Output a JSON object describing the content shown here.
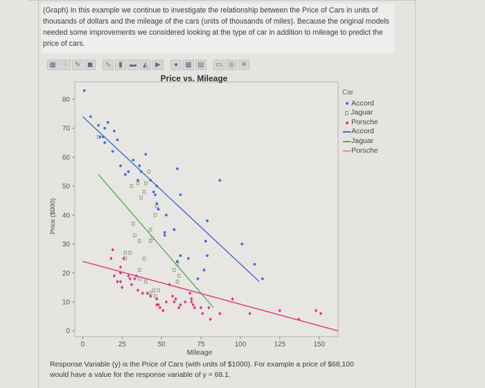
{
  "intro": {
    "text": "(Graph) In this example we continue to investigate the relationship between the Price of Cars in units of thousands of dollars and the mileage of the cars (units of thousands of miles). Because the original models needed some improvements we considered looking at the type of car in addition to mileage to predict the price of cars."
  },
  "toolbar": {
    "icons": [
      "grid-icon",
      "scatter-icon",
      "edit-icon",
      "fill-icon",
      "line-icon",
      "histogram-icon",
      "bar-icon",
      "area-icon",
      "play-icon",
      "points-icon",
      "heatmap-icon",
      "map-icon",
      "text-icon",
      "contour-icon",
      "spin-icon"
    ]
  },
  "chart_data": {
    "type": "scatter",
    "title": "Price vs. Mileage",
    "xlabel": "Mileage",
    "ylabel": "Price ($000)",
    "xlim": [
      -5,
      162
    ],
    "ylim": [
      -2,
      86
    ],
    "xticks": [
      0,
      25,
      50,
      75,
      100,
      125,
      150
    ],
    "yticks": [
      0,
      10,
      20,
      30,
      40,
      50,
      60,
      70,
      80
    ],
    "grid": false,
    "legend_title": "Car",
    "legend_position": "right",
    "series": [
      {
        "name": "Accord",
        "marker": "dot",
        "color": "#3b6fd4",
        "points": [
          [
            1,
            83
          ],
          [
            5,
            74
          ],
          [
            10,
            71
          ],
          [
            14,
            70
          ],
          [
            16,
            72
          ],
          [
            19,
            62
          ],
          [
            20,
            69
          ],
          [
            11,
            67
          ],
          [
            13,
            67
          ],
          [
            14,
            65
          ],
          [
            22,
            66
          ],
          [
            24,
            57
          ],
          [
            27,
            54
          ],
          [
            29,
            55
          ],
          [
            32,
            59
          ],
          [
            35,
            52
          ],
          [
            36,
            57
          ],
          [
            37,
            55
          ],
          [
            40,
            61
          ],
          [
            43,
            52
          ],
          [
            45,
            48
          ],
          [
            46,
            47
          ],
          [
            47,
            44
          ],
          [
            47,
            50
          ],
          [
            48,
            42
          ],
          [
            53,
            40
          ],
          [
            60,
            56
          ],
          [
            62,
            47
          ],
          [
            52,
            33
          ],
          [
            52,
            34
          ],
          [
            58,
            35
          ],
          [
            60,
            24
          ],
          [
            62,
            26
          ],
          [
            67,
            25
          ],
          [
            73,
            18
          ],
          [
            77,
            21
          ],
          [
            78,
            31
          ],
          [
            79,
            26
          ],
          [
            79,
            38
          ],
          [
            87,
            52
          ],
          [
            101,
            30
          ],
          [
            109,
            23
          ],
          [
            114,
            18
          ]
        ]
      },
      {
        "name": "Jaguar",
        "marker": "square",
        "color": "#8a9a6e",
        "points": [
          [
            10,
            67
          ],
          [
            31,
            50
          ],
          [
            35,
            51
          ],
          [
            37,
            46
          ],
          [
            39,
            48
          ],
          [
            40,
            51
          ],
          [
            42,
            55
          ],
          [
            47,
            43
          ],
          [
            46,
            40
          ],
          [
            43,
            35
          ],
          [
            43,
            31
          ],
          [
            44,
            32
          ],
          [
            36,
            31
          ],
          [
            33,
            33
          ],
          [
            32,
            37
          ],
          [
            30,
            27
          ],
          [
            27,
            27
          ],
          [
            27,
            25
          ],
          [
            39,
            25
          ],
          [
            36,
            21
          ],
          [
            36,
            18
          ],
          [
            40,
            17
          ],
          [
            43,
            13
          ],
          [
            45,
            14
          ],
          [
            46,
            12
          ],
          [
            48,
            14
          ],
          [
            58,
            21
          ],
          [
            60,
            17
          ],
          [
            60,
            23
          ],
          [
            61,
            19
          ]
        ]
      },
      {
        "name": "Porsche",
        "marker": "diamond",
        "color": "#e0357a",
        "points": [
          [
            19,
            28
          ],
          [
            18,
            25
          ],
          [
            26,
            25
          ],
          [
            24,
            22
          ],
          [
            20,
            19
          ],
          [
            22,
            17
          ],
          [
            24,
            17
          ],
          [
            25,
            15
          ],
          [
            24,
            20
          ],
          [
            29,
            19
          ],
          [
            30,
            18
          ],
          [
            33,
            18
          ],
          [
            34,
            19
          ],
          [
            31,
            16
          ],
          [
            35,
            14
          ],
          [
            41,
            13
          ],
          [
            38,
            13
          ],
          [
            43,
            12
          ],
          [
            47,
            9
          ],
          [
            47,
            11
          ],
          [
            48,
            9
          ],
          [
            49,
            8
          ],
          [
            51,
            7
          ],
          [
            53,
            10
          ],
          [
            55,
            16
          ],
          [
            57,
            12
          ],
          [
            58,
            10
          ],
          [
            59,
            11
          ],
          [
            61,
            8
          ],
          [
            62,
            9
          ],
          [
            65,
            10
          ],
          [
            68,
            13
          ],
          [
            69,
            11
          ],
          [
            69,
            10
          ],
          [
            70,
            9
          ],
          [
            71,
            8
          ],
          [
            75,
            8
          ],
          [
            76,
            6
          ],
          [
            80,
            8
          ],
          [
            81,
            4
          ],
          [
            87,
            6
          ],
          [
            95,
            11
          ],
          [
            106,
            6
          ],
          [
            125,
            7
          ],
          [
            137,
            4
          ],
          [
            148,
            7
          ],
          [
            151,
            6
          ]
        ]
      }
    ],
    "fit_lines": [
      {
        "name": "Accord",
        "color": "#3a6ccf",
        "from": [
          0,
          74
        ],
        "to": [
          112,
          17
        ]
      },
      {
        "name": "Jaguar",
        "color": "#4fb04f",
        "from": [
          10,
          54
        ],
        "to": [
          83,
          8
        ]
      },
      {
        "name": "Porsche",
        "color": "#e0357a",
        "from": [
          0,
          24
        ],
        "to": [
          162,
          0
        ]
      }
    ]
  },
  "legend": {
    "title": "Car",
    "items": [
      {
        "symbol": "dot",
        "label": "Accord",
        "color": "#3b6fd4"
      },
      {
        "symbol": "square",
        "label": "Jaguar",
        "color": "#8a9a6e"
      },
      {
        "symbol": "dot",
        "label": "Porsche",
        "color": "#e0357a"
      },
      {
        "symbol": "line",
        "label": "Accord",
        "color": "#3a6ccf"
      },
      {
        "symbol": "line",
        "label": "Jaguar",
        "color": "#4fb04f"
      },
      {
        "symbol": "line",
        "label": "Porsche",
        "color": "#e0357a"
      }
    ]
  },
  "footer": {
    "line1": "Response Variable (y) is the Price of Cars (with units of $1000). For example a price of $68,100",
    "line2": "would have a value for the response variable of y = 68.1."
  }
}
